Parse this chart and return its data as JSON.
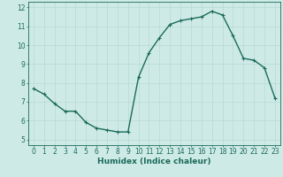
{
  "x": [
    0,
    1,
    2,
    3,
    4,
    5,
    6,
    7,
    8,
    9,
    10,
    11,
    12,
    13,
    14,
    15,
    16,
    17,
    18,
    19,
    20,
    21,
    22,
    23
  ],
  "y": [
    7.7,
    7.4,
    6.9,
    6.5,
    6.5,
    5.9,
    5.6,
    5.5,
    5.4,
    5.4,
    8.3,
    9.6,
    10.4,
    11.1,
    11.3,
    11.4,
    11.5,
    11.8,
    11.6,
    10.5,
    9.3,
    9.2,
    8.8,
    7.2
  ],
  "line_color": "#1a6b5a",
  "marker": "+",
  "marker_size": 3,
  "linewidth": 1.0,
  "bg_color": "#ceeae6",
  "grid_color": "#b8d8d4",
  "axis_color": "#1a6b5a",
  "tick_color": "#1a6b5a",
  "xlabel": "Humidex (Indice chaleur)",
  "xlabel_fontsize": 6.5,
  "ylim": [
    4.7,
    12.3
  ],
  "xlim": [
    -0.5,
    23.5
  ],
  "yticks": [
    5,
    6,
    7,
    8,
    9,
    10,
    11,
    12
  ],
  "xticks": [
    0,
    1,
    2,
    3,
    4,
    5,
    6,
    7,
    8,
    9,
    10,
    11,
    12,
    13,
    14,
    15,
    16,
    17,
    18,
    19,
    20,
    21,
    22,
    23
  ],
  "tick_fontsize": 5.5
}
